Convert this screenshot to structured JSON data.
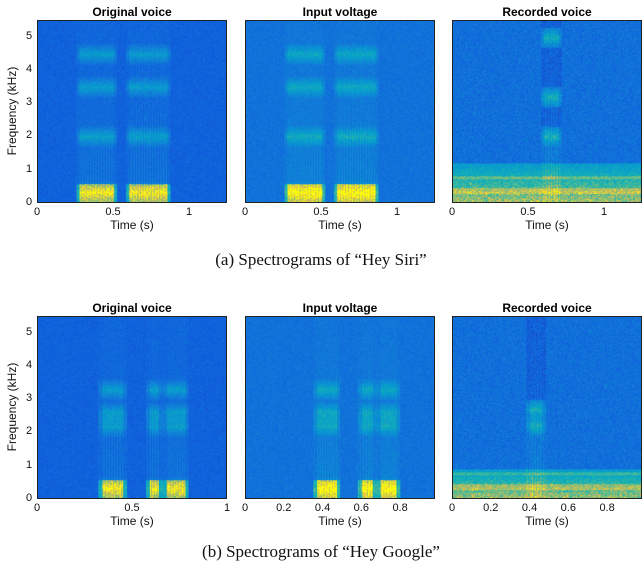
{
  "groups": [
    {
      "caption": "(a) Spectrograms of “Hey Siri”",
      "ylabel": "Frequency (kHz)",
      "yticks": [
        "0",
        "1",
        "2",
        "3",
        "4",
        "5"
      ],
      "panels": [
        {
          "title": "Original voice",
          "xlabel": "Time (s)",
          "xticks": [
            "0",
            "0.5",
            "1"
          ],
          "kind": "clean"
        },
        {
          "title": "Input voltage",
          "xlabel": "Time (s)",
          "xticks": [
            "0",
            "0.5",
            "1"
          ],
          "kind": "voltage"
        },
        {
          "title": "Recorded voice",
          "xlabel": "Time (s)",
          "xticks": [
            "0",
            "0.5",
            "1"
          ],
          "kind": "recorded"
        }
      ]
    },
    {
      "caption": "(b) Spectrograms of “Hey Google”",
      "ylabel": "Frequency (kHz)",
      "yticks": [
        "0",
        "1",
        "2",
        "3",
        "4",
        "5"
      ],
      "panels": [
        {
          "title": "Original voice",
          "xlabel": "Time (s)",
          "xticks": [
            "0",
            "0.5",
            "1"
          ],
          "kind": "clean"
        },
        {
          "title": "Input voltage",
          "xlabel": "Time (s)",
          "xticks": [
            "0",
            "0.2",
            "0.4",
            "0.6",
            "0.8"
          ],
          "kind": "voltage"
        },
        {
          "title": "Recorded voice",
          "xlabel": "Time (s)",
          "xticks": [
            "0",
            "0.2",
            "0.4",
            "0.6",
            "0.8"
          ],
          "kind": "recorded"
        }
      ]
    }
  ],
  "chart_data": [
    {
      "type": "heatmap",
      "title": "Original voice",
      "xlabel": "Time (s)",
      "ylabel": "Frequency (kHz)",
      "xlim": [
        0,
        1.25
      ],
      "ylim": [
        0,
        5.5
      ],
      "colormap": "parula",
      "utterance": "Hey Siri",
      "energy_segments_s": [
        [
          0.27,
          0.5
        ],
        [
          0.6,
          0.86
        ]
      ],
      "formant_bands_khz": [
        0.3,
        2.0,
        3.5,
        4.5
      ]
    },
    {
      "type": "heatmap",
      "title": "Input voltage",
      "xlabel": "Time (s)",
      "xlim": [
        0,
        1.25
      ],
      "ylim": [
        0,
        5.5
      ],
      "colormap": "parula",
      "utterance": "Hey Siri",
      "energy_segments_s": [
        [
          0.27,
          0.5
        ],
        [
          0.6,
          0.86
        ]
      ],
      "formant_bands_khz": [
        0.3,
        2.0,
        3.5,
        4.5
      ]
    },
    {
      "type": "heatmap",
      "title": "Recorded voice",
      "xlabel": "Time (s)",
      "xlim": [
        0,
        1.25
      ],
      "ylim": [
        0,
        5.5
      ],
      "colormap": "parula",
      "utterance": "Hey Siri",
      "energy_segments_s": [
        [
          0.6,
          0.7
        ]
      ],
      "formant_bands_khz": [
        2.0,
        3.2,
        5.0
      ],
      "low_freq_noise_khz": [
        0,
        1.2
      ]
    },
    {
      "type": "heatmap",
      "title": "Original voice",
      "xlabel": "Time (s)",
      "ylabel": "Frequency (kHz)",
      "xlim": [
        0,
        1.0
      ],
      "ylim": [
        0,
        5.5
      ],
      "colormap": "parula",
      "utterance": "Hey Google",
      "energy_segments_s": [
        [
          0.34,
          0.45
        ],
        [
          0.59,
          0.64
        ],
        [
          0.68,
          0.78
        ]
      ],
      "formant_bands_khz": [
        0.3,
        2.2,
        2.6,
        3.3
      ]
    },
    {
      "type": "heatmap",
      "title": "Input voltage",
      "xlabel": "Time (s)",
      "xlim": [
        0,
        0.98
      ],
      "ylim": [
        0,
        5.5
      ],
      "colormap": "parula",
      "utterance": "Hey Google",
      "energy_segments_s": [
        [
          0.37,
          0.47
        ],
        [
          0.6,
          0.66
        ],
        [
          0.7,
          0.78
        ]
      ],
      "formant_bands_khz": [
        0.3,
        2.2,
        2.6,
        3.3
      ]
    },
    {
      "type": "heatmap",
      "title": "Recorded voice",
      "xlabel": "Time (s)",
      "xlim": [
        0,
        0.98
      ],
      "ylim": [
        0,
        5.5
      ],
      "colormap": "parula",
      "utterance": "Hey Google",
      "energy_segments_s": [
        [
          0.4,
          0.46
        ]
      ],
      "formant_bands_khz": [
        2.2,
        2.7
      ],
      "low_freq_noise_khz": [
        0,
        0.9
      ]
    }
  ]
}
